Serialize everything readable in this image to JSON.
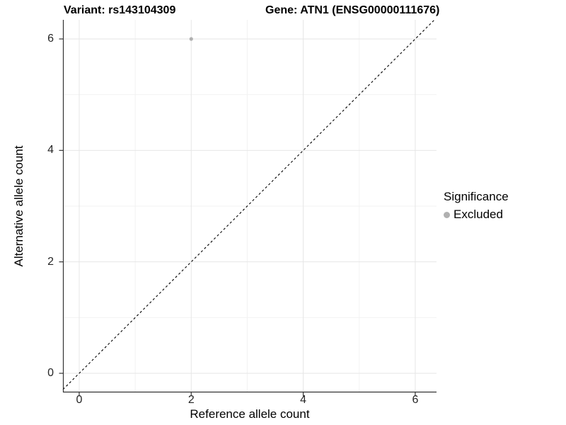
{
  "header": {
    "variant_title": "Variant: rs143104309",
    "gene_title": "Gene: ATN1 (ENSG00000111676)"
  },
  "chart_data": {
    "type": "scatter",
    "xlabel": "Reference allele count",
    "ylabel": "Alternative allele count",
    "xlim": [
      -0.29,
      6.38
    ],
    "ylim": [
      -0.343,
      6.343
    ],
    "x_ticks": [
      0,
      2,
      4,
      6
    ],
    "y_ticks": [
      0,
      2,
      4,
      6
    ],
    "x_minor_ticks": [
      1,
      3,
      5
    ],
    "y_minor_ticks": [
      1,
      3,
      5
    ],
    "grid": "on",
    "series": [
      {
        "name": "Excluded",
        "color": "#b0b0b0",
        "marker": "circle",
        "marker_radius": 2.6,
        "points": [
          [
            2,
            6
          ]
        ]
      }
    ],
    "reference_line": {
      "style": "dashed",
      "slope": 1,
      "intercept": 0,
      "color": "#000000"
    },
    "legend": {
      "position": "right",
      "title": "Significance",
      "entries": [
        {
          "label": "Excluded",
          "color": "#b0b0b0"
        }
      ]
    }
  },
  "colors": {
    "background": "#ffffff",
    "grid_major": "#e6e6e6",
    "grid_minor": "#f2f2f2",
    "axis_line": "#333333",
    "tick_mark": "#333333",
    "tick_label": "#262626",
    "title_text": "#000000"
  }
}
